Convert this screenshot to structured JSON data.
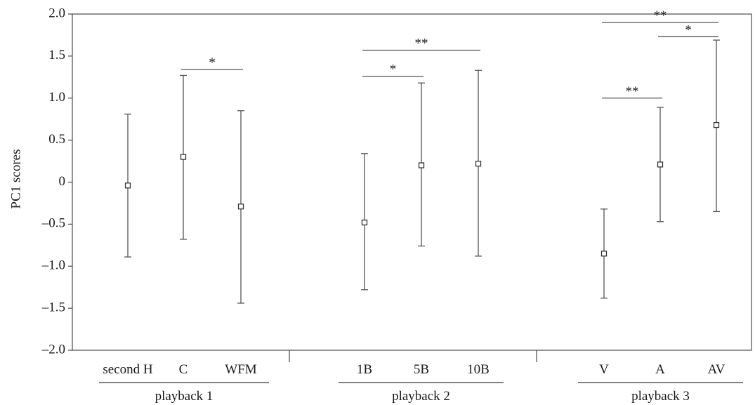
{
  "chart_data": {
    "type": "scatter",
    "subtype": "mean-with-error-bars",
    "title": "",
    "xlabel": "",
    "ylabel": "PC1 scores",
    "ylim": [
      -2.0,
      2.0
    ],
    "yticks": [
      {
        "value": 2.0,
        "label": "2.0"
      },
      {
        "value": 1.5,
        "label": "1.5"
      },
      {
        "value": 1.0,
        "label": "1.0"
      },
      {
        "value": 0.5,
        "label": "0.5"
      },
      {
        "value": 0,
        "label": "0"
      },
      {
        "value": -0.5,
        "label": "–0.5"
      },
      {
        "value": -1.0,
        "label": "–1.0"
      },
      {
        "value": -1.5,
        "label": "–1.5"
      },
      {
        "value": -2.0,
        "label": "–2.0"
      }
    ],
    "grid": false,
    "legend": "none",
    "groups": [
      {
        "label": "playback 1",
        "categories": [
          {
            "label": "second H",
            "mean": -0.04,
            "lower": -0.89,
            "upper": 0.81
          },
          {
            "label": "C",
            "mean": 0.3,
            "lower": -0.68,
            "upper": 1.27
          },
          {
            "label": "WFM",
            "mean": -0.29,
            "lower": -1.44,
            "upper": 0.85
          }
        ],
        "significance": [
          {
            "from": 1,
            "to": 2,
            "label": "*",
            "y": 1.34
          }
        ]
      },
      {
        "label": "playback 2",
        "categories": [
          {
            "label": "1B",
            "mean": -0.48,
            "lower": -1.28,
            "upper": 0.34
          },
          {
            "label": "5B",
            "mean": 0.2,
            "lower": -0.76,
            "upper": 1.18
          },
          {
            "label": "10B",
            "mean": 0.22,
            "lower": -0.88,
            "upper": 1.33
          }
        ],
        "significance": [
          {
            "from": 0,
            "to": 1,
            "label": "*",
            "y": 1.26
          },
          {
            "from": 0,
            "to": 2,
            "label": "**",
            "y": 1.57
          }
        ]
      },
      {
        "label": "playback 3",
        "categories": [
          {
            "label": "V",
            "mean": -0.85,
            "lower": -1.38,
            "upper": -0.32
          },
          {
            "label": "A",
            "mean": 0.21,
            "lower": -0.47,
            "upper": 0.89
          },
          {
            "label": "AV",
            "mean": 0.68,
            "lower": -0.35,
            "upper": 1.69
          }
        ],
        "significance": [
          {
            "from": 0,
            "to": 1,
            "label": "**",
            "y": 1.0
          },
          {
            "from": 1,
            "to": 2,
            "label": "*",
            "y": 1.73
          },
          {
            "from": 0,
            "to": 2,
            "label": "**",
            "y": 1.9
          }
        ]
      }
    ]
  },
  "colors": {
    "axis": "#4a4a4a",
    "errbar": "#555555",
    "marker_fill": "#ffffff",
    "text": "#1a1a1a"
  }
}
